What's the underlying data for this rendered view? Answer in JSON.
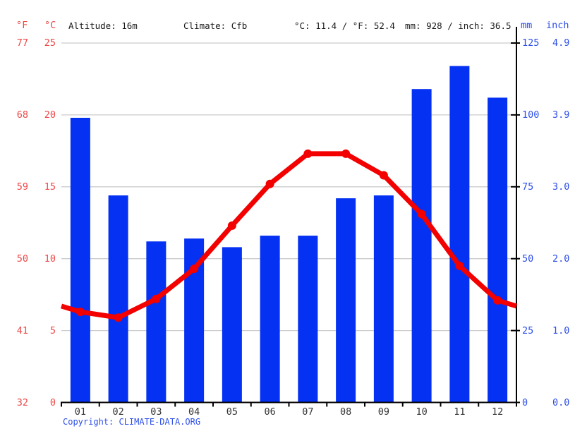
{
  "header": {
    "fahrenheit_unit": "°F",
    "celsius_unit": "°C",
    "altitude": "Altitude: 16m",
    "climate": "Climate: Cfb",
    "avg_temperature": "°C: 11.4 / °F: 52.4",
    "annual_precipitation": "mm: 928 / inch: 36.5",
    "mm_unit": "mm",
    "inch_unit": "inch"
  },
  "axes": {
    "fahrenheit_ticks": [
      "77",
      "68",
      "59",
      "50",
      "41",
      "32"
    ],
    "celsius_ticks": [
      "25",
      "20",
      "15",
      "10",
      "5",
      "0"
    ],
    "mm_ticks": [
      "125",
      "100",
      "75",
      "50",
      "25",
      "0"
    ],
    "inch_ticks": [
      "4.9",
      "3.9",
      "3.0",
      "2.0",
      "1.0",
      "0.0"
    ]
  },
  "chart_data": {
    "type": "bar+line",
    "title": "Climate graph: Altitude 16m, Climate Cfb, annual mean 11.4 °C, annual precipitation 928 mm",
    "categories": [
      "01",
      "02",
      "03",
      "04",
      "05",
      "06",
      "07",
      "08",
      "09",
      "10",
      "11",
      "12"
    ],
    "series": [
      {
        "name": "precipitation",
        "type": "bar",
        "unit": "mm",
        "color": "#0431f2",
        "values": [
          99,
          72,
          56,
          57,
          54,
          58,
          58,
          71,
          72,
          109,
          117,
          106
        ]
      },
      {
        "name": "temperature",
        "type": "line",
        "unit": "°C",
        "color": "#f30000",
        "values": [
          6.3,
          5.9,
          7.2,
          9.3,
          12.3,
          15.2,
          17.3,
          17.3,
          15.8,
          13.1,
          9.5,
          7.1
        ],
        "edge_value": 6.7
      }
    ],
    "left_axis": {
      "label": "°C",
      "min": 0,
      "max": 25,
      "ticks": [
        0,
        5,
        10,
        15,
        20,
        25
      ]
    },
    "left_axis_secondary": {
      "label": "°F",
      "min": 32,
      "max": 77,
      "ticks": [
        32,
        41,
        50,
        59,
        68,
        77
      ]
    },
    "right_axis": {
      "label": "mm",
      "min": 0,
      "max": 125,
      "ticks": [
        0,
        25,
        50,
        75,
        100,
        125
      ]
    },
    "right_axis_secondary": {
      "label": "inch",
      "min": 0.0,
      "max": 4.9,
      "ticks": [
        0.0,
        1.0,
        2.0,
        3.0,
        3.9,
        4.9
      ]
    },
    "grid": true,
    "legend": "none"
  },
  "footer": {
    "copyright": "Copyright: CLIMATE-DATA.ORG"
  },
  "colors": {
    "bar": "#0431f2",
    "line": "#f30000",
    "temp_axis_text": "#ee4747",
    "precip_axis_text": "#2d4fe8",
    "grid": "#cccccc",
    "axis": "#000000",
    "header_text": "#1a1a1a",
    "month_text": "#333333"
  }
}
